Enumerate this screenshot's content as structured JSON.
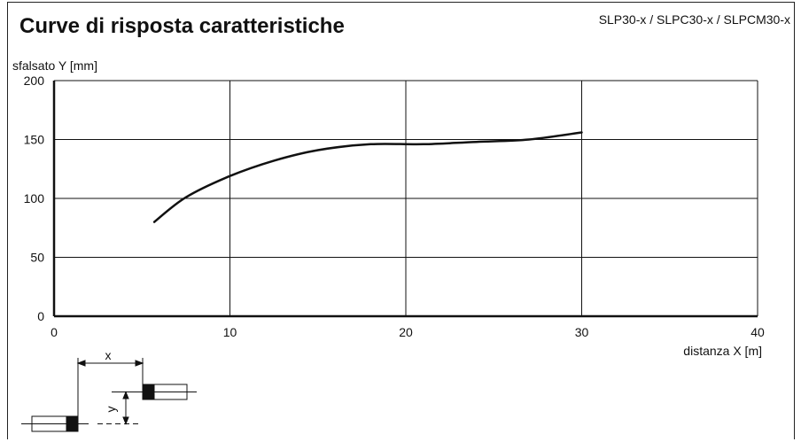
{
  "chart_data": {
    "type": "line",
    "title": "Curve di risposta caratteristiche",
    "subtitle": "SLP30-x / SLPC30-x / SLPCM30-x",
    "xlabel": "distanza X [m]",
    "ylabel": "sfalsato Y [mm]",
    "xlim": [
      0,
      40
    ],
    "ylim": [
      0,
      200
    ],
    "xticks": [
      0,
      10,
      20,
      30,
      40
    ],
    "yticks": [
      0,
      50,
      100,
      150,
      200
    ],
    "grid": true,
    "series": [
      {
        "x": [
          5.7,
          7.5,
          10,
          12.5,
          15,
          18,
          21,
          24,
          27,
          30
        ],
        "y": [
          80,
          101,
          119,
          132,
          141,
          146,
          146,
          148,
          150,
          156
        ]
      }
    ]
  },
  "diagram": {
    "x_label": "x",
    "y_label": "y"
  }
}
